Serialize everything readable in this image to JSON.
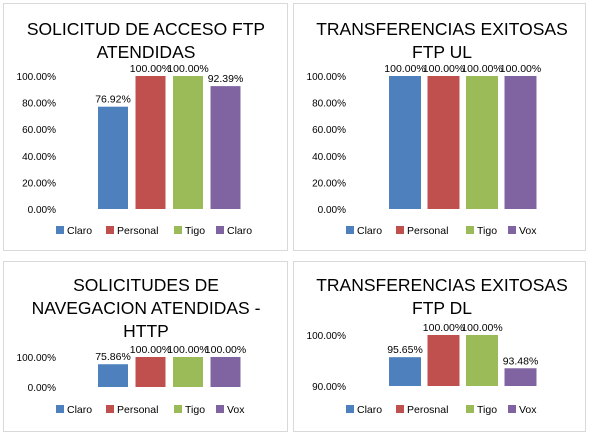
{
  "colors": {
    "claro": "#4e80bd",
    "personal": "#c0504d",
    "tigo": "#9bbb59",
    "purple": "#8064a2",
    "grid": "#d9d9d9"
  },
  "chart_data": [
    {
      "type": "bar",
      "title_lines": [
        "SOLICITUD DE ACCESO FTP",
        "ATENDIDAS"
      ],
      "categories": [
        "Claro",
        "Personal",
        "Tigo",
        "Claro"
      ],
      "values": [
        76.92,
        100.0,
        100.0,
        92.39
      ],
      "value_labels": [
        "76.92%",
        "100.00%",
        "100.00%",
        "92.39%"
      ],
      "bar_colors": [
        "#4e80bd",
        "#c0504d",
        "#9bbb59",
        "#8064a2"
      ],
      "ylim": [
        0,
        100
      ],
      "yticks": [
        0,
        20,
        40,
        60,
        80,
        100
      ],
      "ytick_labels": [
        "0.00%",
        "20.00%",
        "40.00%",
        "60.00%",
        "80.00%",
        "100.00%"
      ],
      "legend": [
        "Claro",
        "Personal",
        "Tigo",
        "Claro"
      ],
      "legend_position": "bottom",
      "grid": false
    },
    {
      "type": "bar",
      "title_lines": [
        "TRANSFERENCIAS EXITOSAS",
        "FTP UL"
      ],
      "categories": [
        "Claro",
        "Personal",
        "Tigo",
        "Vox"
      ],
      "values": [
        100.0,
        100.0,
        100.0,
        100.0
      ],
      "value_labels": [
        "100.00%",
        "100.00%",
        "100.00%",
        "100.00%"
      ],
      "bar_colors": [
        "#4e80bd",
        "#c0504d",
        "#9bbb59",
        "#8064a2"
      ],
      "ylim": [
        0,
        100
      ],
      "yticks": [
        0,
        20,
        40,
        60,
        80,
        100
      ],
      "ytick_labels": [
        "0.00%",
        "20.00%",
        "40.00%",
        "60.00%",
        "80.00%",
        "100.00%"
      ],
      "legend": [
        "Claro",
        "Personal",
        "Tigo",
        "Vox"
      ],
      "legend_position": "bottom",
      "grid": false
    },
    {
      "type": "bar",
      "title_lines": [
        "SOLICITUDES DE",
        "NAVEGACION ATENDIDAS -",
        "HTTP"
      ],
      "categories": [
        "Claro",
        "Personal",
        "Tigo",
        "Vox"
      ],
      "values": [
        75.86,
        100.0,
        100.0,
        100.0
      ],
      "value_labels": [
        "75.86%",
        "100.00%",
        "100.00%",
        "100.00%"
      ],
      "bar_colors": [
        "#4e80bd",
        "#c0504d",
        "#9bbb59",
        "#8064a2"
      ],
      "ylim": [
        0,
        100
      ],
      "yticks": [
        0,
        100
      ],
      "ytick_labels": [
        "0.00%",
        "100.00%"
      ],
      "legend": [
        "Claro",
        "Personal",
        "Tigo",
        "Vox"
      ],
      "legend_position": "bottom",
      "grid": false
    },
    {
      "type": "bar",
      "title_lines": [
        "TRANSFERENCIAS EXITOSAS",
        "FTP DL"
      ],
      "categories": [
        "Claro",
        "Perosnal",
        "Tigo",
        "Vox"
      ],
      "values": [
        95.65,
        100.0,
        100.0,
        93.48
      ],
      "value_labels": [
        "95.65%",
        "100.00%",
        "100.00%",
        "93.48%"
      ],
      "bar_colors": [
        "#4e80bd",
        "#c0504d",
        "#9bbb59",
        "#8064a2"
      ],
      "ylim": [
        90,
        100
      ],
      "yticks": [
        90,
        100
      ],
      "ytick_labels": [
        "90.00%",
        "100.00%"
      ],
      "legend": [
        "Claro",
        "Perosnal",
        "Tigo",
        "Vox"
      ],
      "legend_position": "bottom",
      "grid": false
    }
  ]
}
